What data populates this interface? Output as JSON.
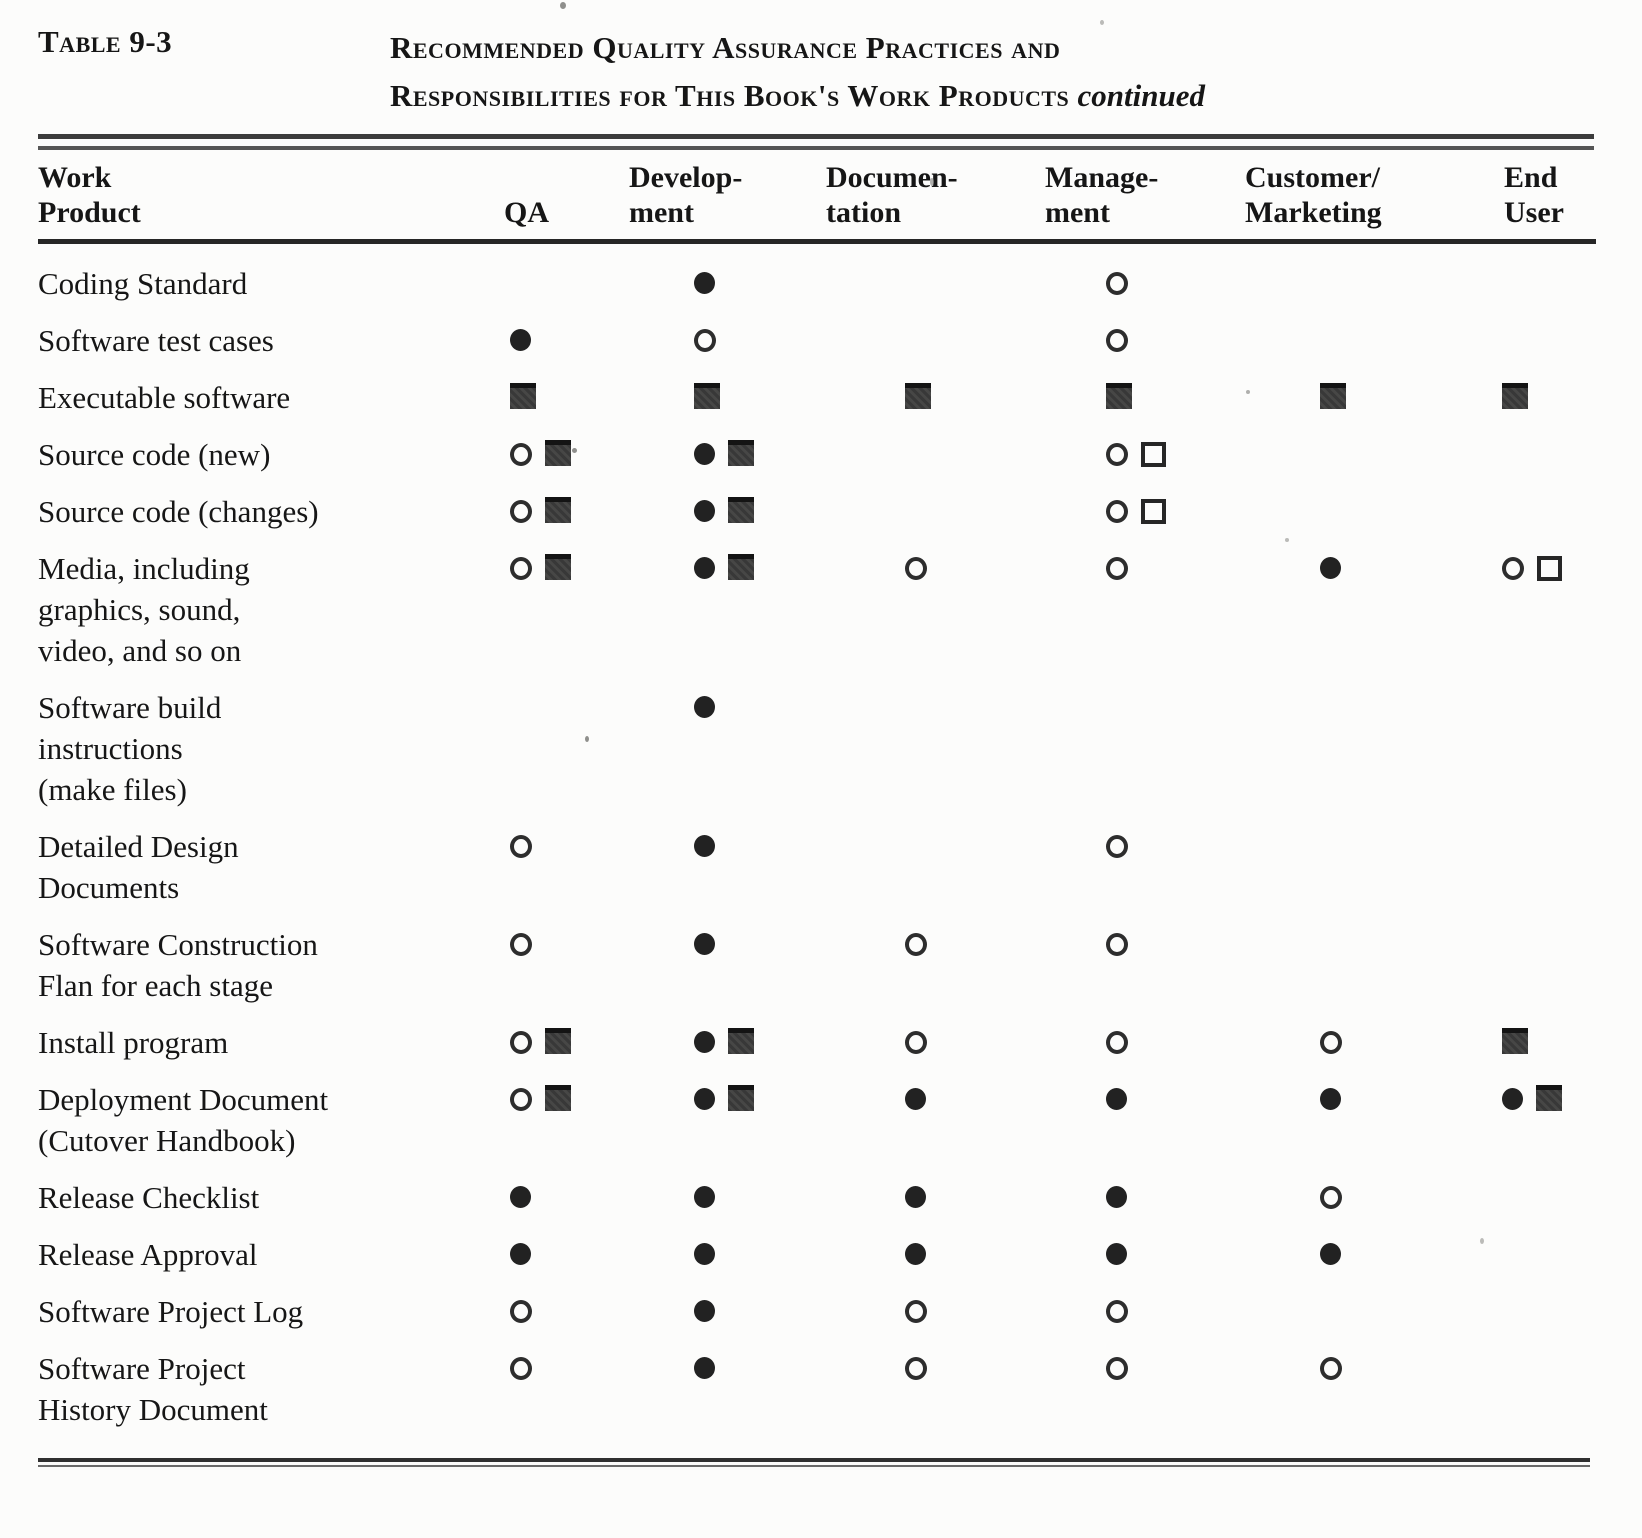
{
  "page": {
    "label": "Table 9-3",
    "title": {
      "line1": "Recommended Quality Assurance Practices and",
      "line2": "Responsibilities for This Book's Work Products",
      "continued": "continued"
    }
  },
  "table": {
    "columns": [
      {
        "key": "work-product",
        "line1": "Work",
        "line2": "Product"
      },
      {
        "key": "qa",
        "line1": "",
        "line2": "QA"
      },
      {
        "key": "development",
        "line1": "Develop-",
        "line2": "ment"
      },
      {
        "key": "documentation",
        "line1": "Documen-",
        "line2": "tation"
      },
      {
        "key": "management",
        "line1": "Manage-",
        "line2": "ment"
      },
      {
        "key": "customer-marketing",
        "line1": "Customer/",
        "line2": "Marketing"
      },
      {
        "key": "end-user",
        "line1": "End",
        "line2": "User"
      }
    ],
    "symbols": {
      "fc": "filled-circle",
      "oc": "open-circle",
      "fs": "filled-square",
      "os": "open-square"
    },
    "rows": [
      {
        "product": [
          "Coding Standard"
        ],
        "cells": [
          [],
          [
            "fc"
          ],
          [],
          [
            "oc"
          ],
          [],
          []
        ]
      },
      {
        "product": [
          "Software test cases"
        ],
        "cells": [
          [
            "fc"
          ],
          [
            "oc"
          ],
          [],
          [
            "oc"
          ],
          [],
          []
        ]
      },
      {
        "product": [
          "Executable software"
        ],
        "cells": [
          [
            "fs"
          ],
          [
            "fs"
          ],
          [
            "fs"
          ],
          [
            "fs"
          ],
          [
            "fs"
          ],
          [
            "fs"
          ]
        ]
      },
      {
        "product": [
          "Source code (new)"
        ],
        "cells": [
          [
            "oc",
            "fs"
          ],
          [
            "fc",
            "fs"
          ],
          [],
          [
            "oc",
            "os"
          ],
          [],
          []
        ]
      },
      {
        "product": [
          "Source code (changes)"
        ],
        "cells": [
          [
            "oc",
            "fs"
          ],
          [
            "fc",
            "fs"
          ],
          [],
          [
            "oc",
            "os"
          ],
          [],
          []
        ]
      },
      {
        "product": [
          "Media, including",
          "graphics, sound,",
          "video, and so on"
        ],
        "cells": [
          [
            "oc",
            "fs"
          ],
          [
            "fc",
            "fs"
          ],
          [
            "oc"
          ],
          [
            "oc"
          ],
          [
            "fc"
          ],
          [
            "oc",
            "os"
          ]
        ]
      },
      {
        "product": [
          "Software  build",
          "instructions",
          "(make files)"
        ],
        "cells": [
          [],
          [
            "fc"
          ],
          [],
          [],
          [],
          []
        ]
      },
      {
        "product": [
          "Detailed Design",
          "Documents"
        ],
        "cells": [
          [
            "oc"
          ],
          [
            "fc"
          ],
          [],
          [
            "oc"
          ],
          [],
          []
        ]
      },
      {
        "product": [
          "Software  Construction",
          "Flan for each stage"
        ],
        "cells": [
          [
            "oc"
          ],
          [
            "fc"
          ],
          [
            "oc"
          ],
          [
            "oc"
          ],
          [],
          []
        ]
      },
      {
        "product": [
          "Install program"
        ],
        "cells": [
          [
            "oc",
            "fs"
          ],
          [
            "fc",
            "fs"
          ],
          [
            "oc"
          ],
          [
            "oc"
          ],
          [
            "oc"
          ],
          [
            "fs"
          ]
        ]
      },
      {
        "product": [
          "Deployment Document",
          "(Cutover  Handbook)"
        ],
        "cells": [
          [
            "oc",
            "fs"
          ],
          [
            "fc",
            "fs"
          ],
          [
            "fc"
          ],
          [
            "fc"
          ],
          [
            "fc"
          ],
          [
            "fc",
            "fs"
          ]
        ]
      },
      {
        "product": [
          "Release  Checklist"
        ],
        "cells": [
          [
            "fc"
          ],
          [
            "fc"
          ],
          [
            "fc"
          ],
          [
            "fc"
          ],
          [
            "oc"
          ],
          []
        ]
      },
      {
        "product": [
          "Release  Approval"
        ],
        "cells": [
          [
            "fc"
          ],
          [
            "fc"
          ],
          [
            "fc"
          ],
          [
            "fc"
          ],
          [
            "fc"
          ],
          []
        ]
      },
      {
        "product": [
          "Software Project Log"
        ],
        "cells": [
          [
            "oc"
          ],
          [
            "fc"
          ],
          [
            "oc"
          ],
          [
            "oc"
          ],
          [],
          []
        ]
      },
      {
        "product": [
          "Software Project",
          "History Document"
        ],
        "cells": [
          [
            "oc"
          ],
          [
            "fc"
          ],
          [
            "oc"
          ],
          [
            "oc"
          ],
          [
            "oc"
          ],
          []
        ]
      }
    ]
  }
}
